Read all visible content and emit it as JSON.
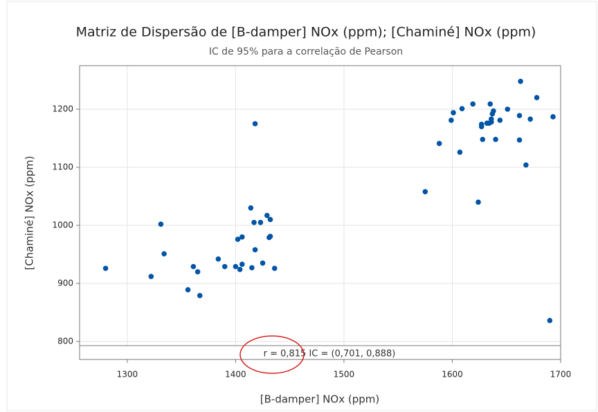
{
  "chart_data": {
    "type": "scatter",
    "title": "Matriz de Dispersão de [B-damper] NOx (ppm); [Chaminé] NOx (ppm)",
    "subtitle": "IC  de 95% para a correlação de Pearson",
    "x_label": "[B-damper] NOx (ppm)",
    "y_label": "[Chaminé] NOx (ppm)",
    "annotation": "r = 0,815  IC = (0,701, 0,888)",
    "color": "#0054a6",
    "grid": true,
    "xlim": [
      1256,
      1700
    ],
    "ylim": [
      769,
      1275
    ],
    "xticks": [
      1300,
      1400,
      1500,
      1600,
      1700
    ],
    "yticks": [
      800,
      900,
      1000,
      1100,
      1200
    ],
    "x": [
      1280,
      1322,
      1331,
      1334,
      1356,
      1361,
      1365,
      1367,
      1384,
      1390,
      1400,
      1402,
      1404,
      1406,
      1406,
      1414,
      1415,
      1418,
      1417,
      1418,
      1423,
      1425,
      1429,
      1431,
      1432,
      1432,
      1436,
      1575,
      1588,
      1599,
      1601,
      1609,
      1607,
      1619,
      1627,
      1627,
      1628,
      1624,
      1632,
      1635,
      1636,
      1637,
      1638,
      1634,
      1640,
      1644,
      1651,
      1662,
      1662,
      1663,
      1668,
      1672,
      1678,
      1693,
      1690,
      1636
    ],
    "values": [
      926,
      912,
      1002,
      951,
      889,
      929,
      920,
      879,
      942,
      929,
      929,
      976,
      924,
      980,
      933,
      1030,
      927,
      1175,
      1005,
      958,
      1005,
      935,
      1017,
      979,
      1010,
      981,
      926,
      1058,
      1141,
      1181,
      1194,
      1201,
      1126,
      1209,
      1174,
      1170,
      1148,
      1040,
      1176,
      1209,
      1183,
      1192,
      1197,
      1176,
      1148,
      1181,
      1200,
      1189,
      1147,
      1248,
      1104,
      1183,
      1220,
      1187,
      836,
      1178
    ]
  }
}
